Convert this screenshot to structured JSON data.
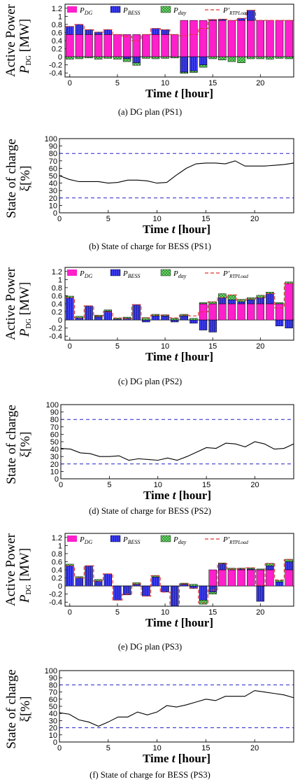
{
  "colors": {
    "dg": "#ff1fcb",
    "bess": "#3c3cf0",
    "day": "#6fe06f",
    "load": "#e23030",
    "limit": "#2020c8"
  },
  "captions": [
    "(a)  DG plan (PS1)",
    "(b)  State of charge for BESS (PS1)",
    "(c)  DG plan (PS2)",
    "(d)  State of charge for BESS (PS2)",
    "(e)  DG plan (PS3)",
    "(f)  State of charge for BESS (PS3)"
  ],
  "labels": {
    "power_y1": "Active Power",
    "power_y2": "P",
    "power_y2_sub": "DG",
    "power_y2_unit": " [MW]",
    "soc_y1": "State of charge",
    "soc_y2": "ξ[%]",
    "x_pre": "Time ",
    "x_var": "t",
    "x_post": " [hour]"
  },
  "legend": {
    "dg": "P",
    "dg_sub": "DG",
    "bess": "P",
    "bess_sub": "BESS",
    "day": "P",
    "day_sub": "day",
    "load": "P'",
    "load_sub": "RTPLoad"
  },
  "chart_data": [
    {
      "type": "bar",
      "id": "ps1_dg",
      "xlabel": "Time t [hour]",
      "ylabel": "Active Power PDG [MW]",
      "xlim": [
        -0.5,
        23.5
      ],
      "ylim": [
        -0.5,
        1.3
      ],
      "yticks": [
        -0.4,
        -0.2,
        0,
        0.2,
        0.4,
        0.6,
        0.8,
        1,
        1.2
      ],
      "xticks": [
        0,
        5,
        10,
        15,
        20
      ],
      "x": [
        0,
        1,
        2,
        3,
        4,
        5,
        6,
        7,
        8,
        9,
        10,
        11,
        12,
        13,
        14,
        15,
        16,
        17,
        18,
        19,
        20,
        21,
        22,
        23
      ],
      "series": [
        {
          "name": "PDG",
          "values": [
            0.55,
            0.55,
            0.55,
            0.55,
            0.55,
            0.55,
            0.55,
            0.55,
            0.55,
            0.55,
            0.55,
            0.55,
            0.9,
            0.9,
            0.9,
            0.9,
            0.9,
            0.9,
            0.9,
            0.9,
            0.9,
            0.9,
            0.9,
            0.9
          ]
        },
        {
          "name": "PBESS",
          "values": [
            0.2,
            0.25,
            0.12,
            0.06,
            0.12,
            0,
            -0.05,
            -0.15,
            0,
            0.15,
            0.12,
            0,
            -0.38,
            -0.35,
            -0.2,
            0.02,
            0.03,
            0,
            0.05,
            0.25,
            0,
            0,
            0,
            0
          ]
        },
        {
          "name": "Pday",
          "values": [
            -0.06,
            -0.05,
            -0.03,
            -0.06,
            -0.04,
            -0.06,
            -0.07,
            -0.06,
            -0.04,
            -0.05,
            -0.04,
            -0.03,
            -0.03,
            -0.04,
            -0.06,
            -0.05,
            -0.08,
            -0.12,
            -0.15,
            -0.05,
            -0.05,
            -0.06,
            -0.04,
            -0.05
          ]
        },
        {
          "name": "P'RTPLoad",
          "values": [
            0.75,
            0.8,
            0.67,
            0.61,
            0.67,
            0.55,
            0.5,
            0.4,
            0.55,
            0.7,
            0.67,
            0.55,
            0.52,
            0.55,
            0.7,
            0.92,
            0.93,
            0.9,
            0.95,
            1.15,
            0.9,
            0.9,
            0.9,
            0.9
          ]
        }
      ]
    },
    {
      "type": "line",
      "id": "ps1_soc",
      "xlabel": "Time t [hour]",
      "ylabel": "State of charge ξ[%]",
      "xlim": [
        0,
        24
      ],
      "ylim": [
        0,
        100
      ],
      "yticks": [
        0,
        10,
        20,
        30,
        40,
        50,
        60,
        70,
        80,
        90,
        100
      ],
      "xticks": [
        0,
        5,
        10,
        15,
        20
      ],
      "limits": [
        80,
        20
      ],
      "x": [
        0,
        1,
        2,
        3,
        4,
        5,
        6,
        7,
        8,
        9,
        10,
        11,
        12,
        13,
        14,
        15,
        16,
        17,
        18,
        19,
        20,
        21,
        22,
        23,
        24
      ],
      "values": [
        50,
        45,
        42,
        42,
        42,
        40,
        41,
        44,
        44,
        43,
        40,
        41,
        51,
        60,
        66,
        67,
        67,
        66,
        70,
        63,
        63,
        63,
        64,
        65,
        67
      ]
    },
    {
      "type": "bar",
      "id": "ps2_dg",
      "xlabel": "Time t [hour]",
      "ylabel": "Active Power PDG [MW]",
      "xlim": [
        -0.5,
        23.5
      ],
      "ylim": [
        -0.5,
        1.3
      ],
      "yticks": [
        -0.4,
        -0.2,
        0,
        0.2,
        0.4,
        0.6,
        0.8,
        1,
        1.2
      ],
      "xticks": [
        0,
        5,
        10,
        15,
        20
      ],
      "x": [
        0,
        1,
        2,
        3,
        4,
        5,
        6,
        7,
        8,
        9,
        10,
        11,
        12,
        13,
        14,
        15,
        16,
        17,
        18,
        19,
        20,
        21,
        22,
        23
      ],
      "series": [
        {
          "name": "PDG",
          "values": [
            0,
            0,
            0,
            0,
            0,
            0,
            0,
            0,
            0,
            0,
            0,
            0,
            0,
            0,
            0.4,
            0.4,
            0.4,
            0.4,
            0.4,
            0.4,
            0.4,
            0.4,
            0.4,
            0.9
          ]
        },
        {
          "name": "PBESS",
          "values": [
            0.55,
            0.05,
            0.35,
            0.08,
            0.22,
            0.02,
            0.04,
            0.38,
            -0.05,
            0.1,
            0.1,
            -0.05,
            0.1,
            -0.08,
            -0.25,
            -0.3,
            0.15,
            0.1,
            0.05,
            0.1,
            0.15,
            0.25,
            -0.15,
            -0.2
          ]
        },
        {
          "name": "Pday",
          "values": [
            0.04,
            0.04,
            0,
            0.04,
            0.03,
            0.03,
            0.03,
            0,
            0.06,
            0.04,
            0.03,
            0.04,
            0.04,
            0.04,
            0.03,
            0.05,
            0.1,
            0.12,
            0.06,
            0.05,
            0.06,
            0.04,
            0.03,
            0.04
          ]
        },
        {
          "name": "P'RTPLoad",
          "values": [
            0.55,
            0.05,
            0.35,
            0.1,
            0.2,
            0.05,
            0.03,
            0.38,
            0.05,
            0.12,
            0.12,
            0.05,
            0.12,
            0.1,
            0.2,
            0.45,
            0.55,
            0.62,
            0.48,
            0.52,
            0.55,
            0.65,
            0.3,
            0.9
          ]
        }
      ]
    },
    {
      "type": "line",
      "id": "ps2_soc",
      "xlabel": "Time t [hour]",
      "ylabel": "State of charge ξ[%]",
      "xlim": [
        0,
        24
      ],
      "ylim": [
        0,
        100
      ],
      "yticks": [
        0,
        10,
        20,
        30,
        40,
        50,
        60,
        70,
        80,
        90,
        100
      ],
      "xticks": [
        0,
        5,
        10,
        15,
        20
      ],
      "limits": [
        80,
        20
      ],
      "x": [
        0,
        1,
        2,
        3,
        4,
        5,
        6,
        7,
        8,
        9,
        10,
        11,
        12,
        13,
        14,
        15,
        16,
        17,
        18,
        19,
        20,
        21,
        22,
        23,
        24
      ],
      "values": [
        41,
        40,
        35,
        34,
        30,
        30,
        31,
        25,
        27,
        26,
        25,
        28,
        25,
        30,
        36,
        42,
        41,
        48,
        47,
        43,
        50,
        47,
        40,
        41,
        47
      ]
    },
    {
      "type": "bar",
      "id": "ps3_dg",
      "xlabel": "Time t [hour]",
      "ylabel": "Active Power PDG [MW]",
      "xlim": [
        -0.5,
        23.5
      ],
      "ylim": [
        -0.5,
        1.3
      ],
      "yticks": [
        -0.4,
        -0.2,
        0,
        0.2,
        0.4,
        0.6,
        0.8,
        1,
        1.2
      ],
      "xticks": [
        0,
        5,
        10,
        15,
        20
      ],
      "x": [
        0,
        1,
        2,
        3,
        4,
        5,
        6,
        7,
        8,
        9,
        10,
        11,
        12,
        13,
        14,
        15,
        16,
        17,
        18,
        19,
        20,
        21,
        22,
        23
      ],
      "series": [
        {
          "name": "PDG",
          "values": [
            0,
            0,
            0,
            0,
            0,
            0,
            0,
            0,
            0,
            0,
            0,
            0,
            0,
            0,
            0,
            0.4,
            0.4,
            0.4,
            0.4,
            0.4,
            0.4,
            0.4,
            0,
            0.4
          ]
        },
        {
          "name": "PBESS",
          "values": [
            0.5,
            0.2,
            0.5,
            0.12,
            0.3,
            -0.35,
            -0.22,
            0.04,
            -0.25,
            0.22,
            -0.15,
            -0.5,
            0.04,
            -0.06,
            -0.35,
            -0.15,
            0.15,
            0,
            0.02,
            0.02,
            -0.38,
            0.1,
            0.1,
            0.2
          ]
        },
        {
          "name": "Pday",
          "values": [
            0.04,
            0.03,
            0,
            0.04,
            0,
            0,
            0,
            0.04,
            0,
            0.04,
            0,
            0,
            0.03,
            0.04,
            -0.1,
            -0.05,
            0.02,
            0.04,
            0.02,
            0.03,
            0.02,
            0.06,
            0.04,
            0.06
          ]
        },
        {
          "name": "P'RTPLoad",
          "values": [
            0.5,
            0.2,
            0.5,
            0.12,
            0.3,
            -0.35,
            -0.2,
            0.05,
            -0.25,
            0.25,
            -0.15,
            -0.5,
            0.05,
            -0.05,
            -0.42,
            -0.1,
            0.55,
            0.42,
            0.42,
            0.45,
            0.02,
            0.55,
            0.15,
            0.65
          ]
        }
      ]
    },
    {
      "type": "line",
      "id": "ps3_soc",
      "xlabel": "Time t [hour]",
      "ylabel": "State of charge ξ[%]",
      "xlim": [
        0,
        24
      ],
      "ylim": [
        0,
        100
      ],
      "yticks": [
        0,
        10,
        20,
        30,
        40,
        50,
        60,
        70,
        80,
        90,
        100
      ],
      "xticks": [
        0,
        5,
        10,
        15,
        20
      ],
      "limits": [
        80,
        20
      ],
      "x": [
        0,
        1,
        2,
        3,
        4,
        5,
        6,
        7,
        8,
        9,
        10,
        11,
        12,
        13,
        14,
        15,
        16,
        17,
        18,
        19,
        20,
        21,
        22,
        23,
        24
      ],
      "values": [
        41,
        39,
        31,
        28,
        22,
        28,
        35,
        35,
        42,
        38,
        42,
        51,
        49,
        52,
        56,
        60,
        58,
        64,
        64,
        64,
        72,
        70,
        68,
        66,
        62
      ]
    }
  ]
}
